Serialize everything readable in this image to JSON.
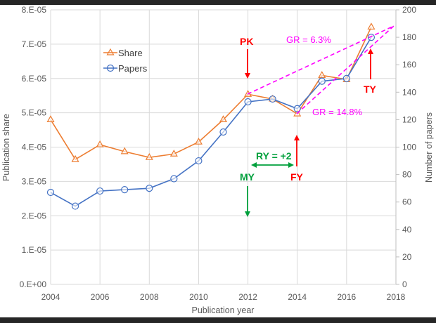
{
  "chart_data": {
    "type": "line",
    "title": "",
    "xlabel": "Publication year",
    "ylabel": "Publication share",
    "y2label": "Number of papers",
    "xlim": [
      2004,
      2018
    ],
    "ylim": [
      0,
      8e-05
    ],
    "y2lim": [
      0,
      200
    ],
    "x_ticks": [
      "2004",
      "2006",
      "2008",
      "2010",
      "2012",
      "2014",
      "2016",
      "2018"
    ],
    "y_ticks": [
      "0.E+00",
      "1.E-05",
      "2.E-05",
      "3.E-05",
      "4.E-05",
      "5.E-05",
      "6.E-05",
      "7.E-05",
      "8.E-05"
    ],
    "y2_ticks": [
      "0",
      "20",
      "40",
      "60",
      "80",
      "100",
      "120",
      "140",
      "160",
      "180",
      "200"
    ],
    "grid": true,
    "legend_position": "upper-left (inside)",
    "x": [
      2004,
      2005,
      2006,
      2007,
      2008,
      2009,
      2010,
      2011,
      2012,
      2013,
      2014,
      2015,
      2016,
      2017
    ],
    "series": [
      {
        "name": "Share",
        "axis": "left",
        "marker": "triangle",
        "color": "#ed7d31",
        "values": [
          4.8e-05,
          3.64e-05,
          4.07e-05,
          3.87e-05,
          3.7e-05,
          3.8e-05,
          4.15e-05,
          4.8e-05,
          5.54e-05,
          5.4e-05,
          4.97e-05,
          6.09e-05,
          5.97e-05,
          7.5e-05
        ]
      },
      {
        "name": "Papers",
        "axis": "right",
        "marker": "circle",
        "color": "#4472c4",
        "values": [
          67,
          57,
          68,
          69,
          70,
          77,
          90,
          111,
          133,
          135,
          128,
          148,
          150,
          180
        ]
      }
    ],
    "annotations": [
      {
        "text": "PK",
        "color": "#ff0000",
        "x": 2012,
        "arrow": "down"
      },
      {
        "text": "FY",
        "color": "#ff0000",
        "x": 2014,
        "arrow": "up"
      },
      {
        "text": "TY",
        "color": "#ff0000",
        "x": 2017,
        "arrow": "up"
      },
      {
        "text": "MY",
        "color": "#00a03c",
        "x": 2012,
        "arrow": "down"
      },
      {
        "text": "RY = +2",
        "color": "#00a03c",
        "arrow": "double-horizontal 2012-2014"
      },
      {
        "text": "GR = 6.3%",
        "color": "#ff00ff",
        "line": "dashed 2012 to 2017"
      },
      {
        "text": "GR = 14.8%",
        "color": "#ff00ff",
        "line": "dashed 2014 to 2017"
      }
    ]
  },
  "labels": {
    "xlabel": "Publication year",
    "ylabel": "Publication share",
    "y2label": "Number of papers",
    "legend_share": "Share",
    "legend_papers": "Papers",
    "pk": "PK",
    "fy": "FY",
    "ty": "TY",
    "my": "MY",
    "ry": "RY = +2",
    "gr1": "GR = 6.3%",
    "gr2": "GR = 14.8%"
  }
}
